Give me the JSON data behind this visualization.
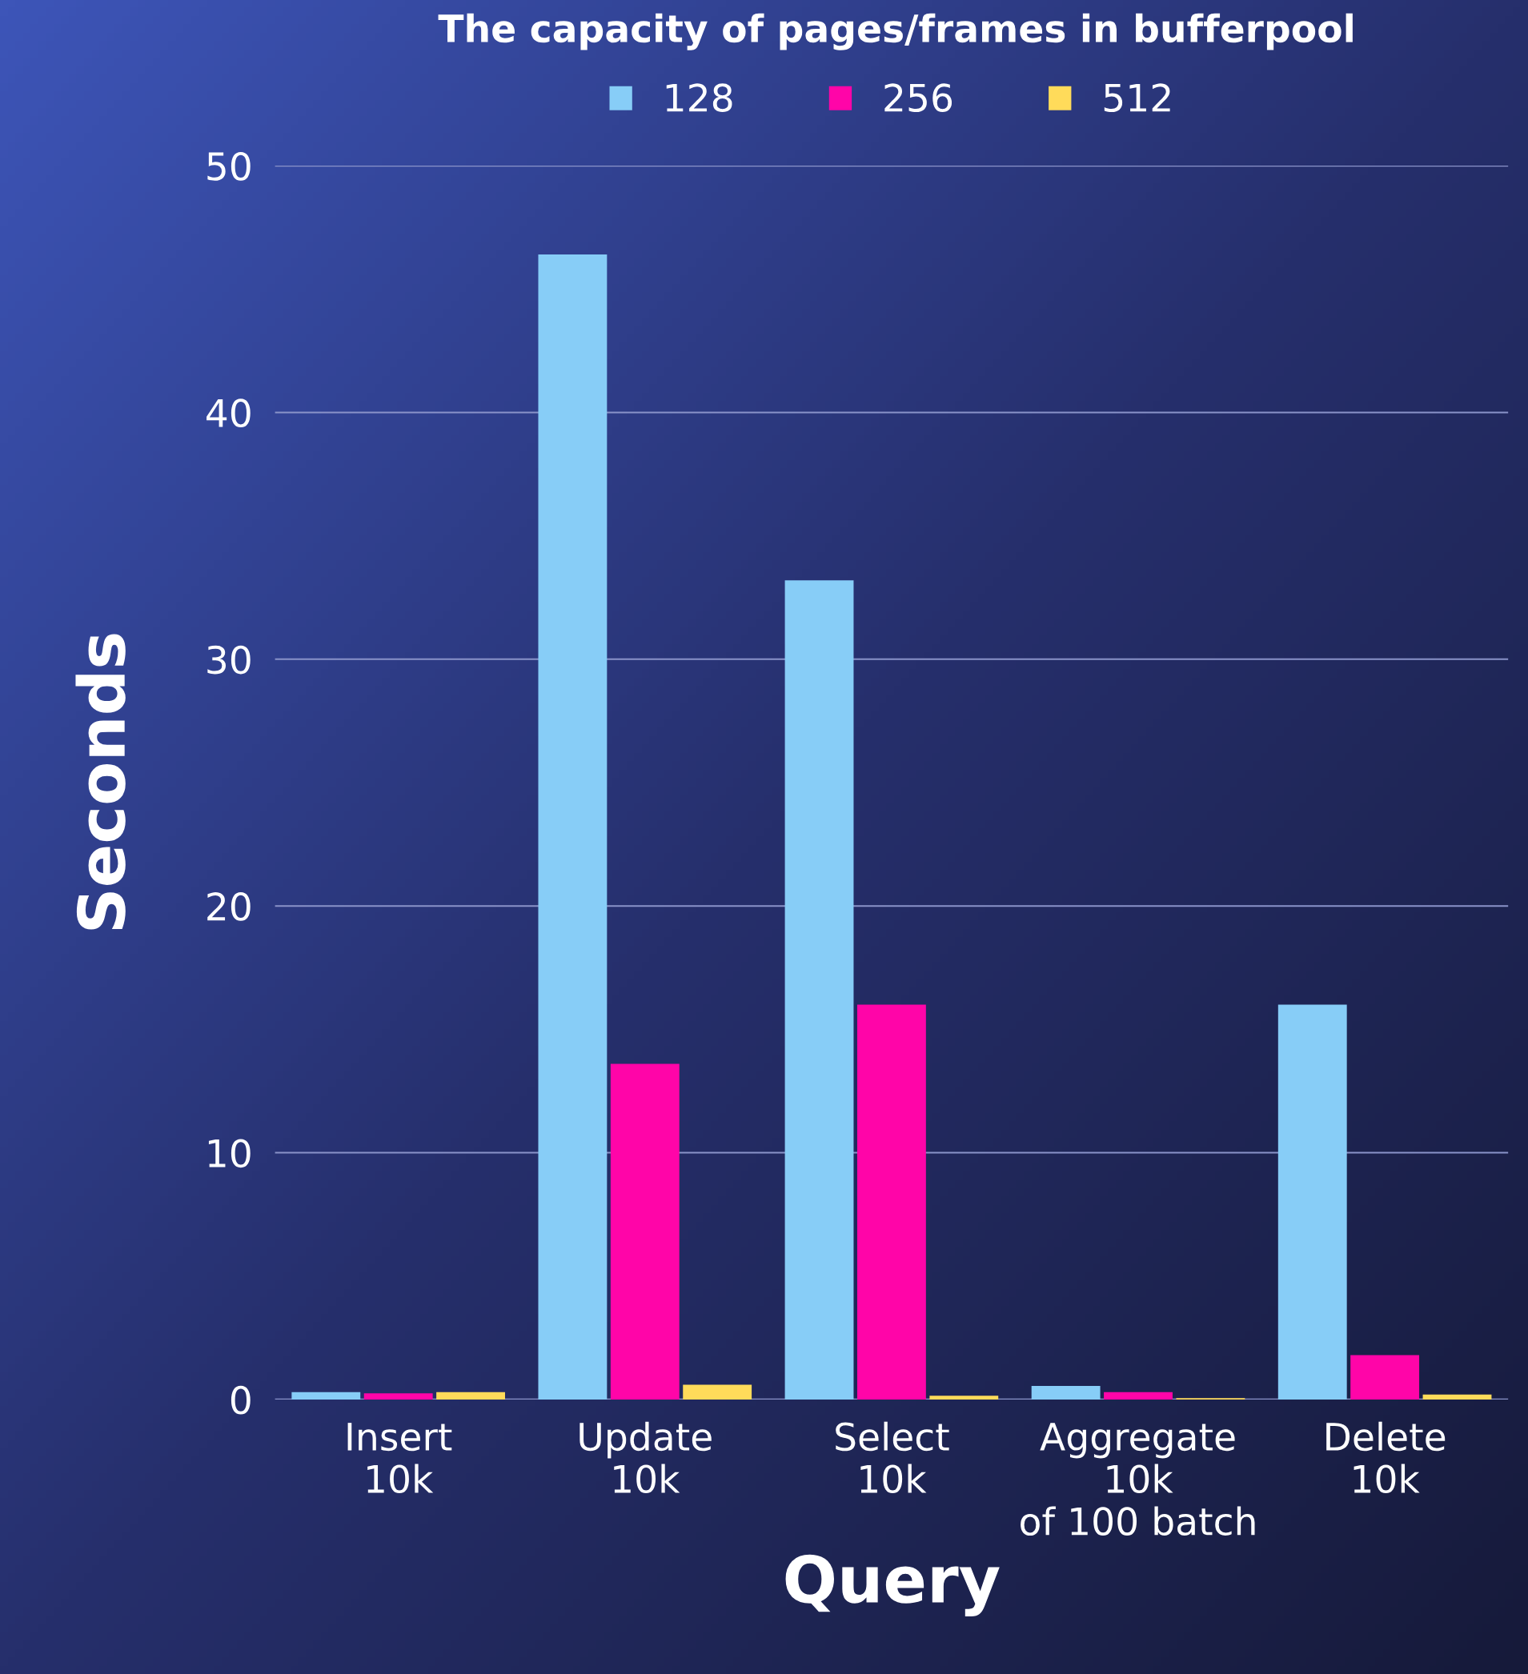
{
  "chart_data": {
    "type": "bar",
    "title": "The capacity of pages/frames in bufferpool",
    "xlabel": "Query",
    "ylabel": "Seconds",
    "categories": [
      "Insert\n10k",
      "Update\n10k",
      "Select\n10k",
      "Aggregate\n10k\nof 100 batch",
      "Delete\n10k"
    ],
    "series": [
      {
        "name": "128",
        "color": "#87cdf7",
        "values": [
          0.3,
          46.4,
          33.2,
          0.55,
          16.0
        ]
      },
      {
        "name": "256",
        "color": "#ff05a8",
        "values": [
          0.25,
          13.6,
          16.0,
          0.3,
          1.8
        ]
      },
      {
        "name": "512",
        "color": "#ffdb5a",
        "values": [
          0.3,
          0.6,
          0.15,
          0.05,
          0.2
        ]
      }
    ],
    "ylim": [
      0,
      50
    ],
    "yticks": [
      0,
      10,
      20,
      30,
      40,
      50
    ],
    "grid": "y",
    "legend": "top"
  }
}
